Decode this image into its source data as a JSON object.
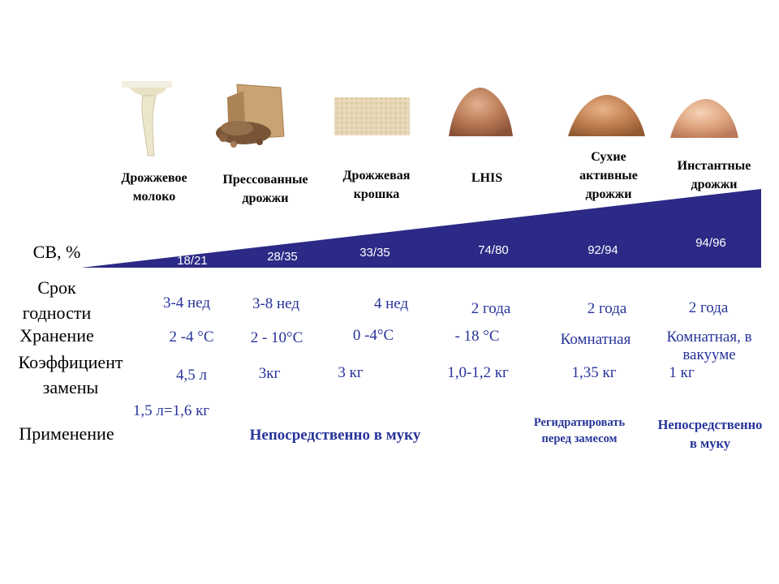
{
  "products": [
    {
      "id": "milk",
      "name": "Дрожжевое\nмолоко"
    },
    {
      "id": "pressed",
      "name": "Прессованные\nдрожжи"
    },
    {
      "id": "crumb",
      "name": "Дрожжевая\nкрошка"
    },
    {
      "id": "lhis",
      "name": "LHIS"
    },
    {
      "id": "dry",
      "name": "Сухие\nактивные\nдрожжи"
    },
    {
      "id": "instant",
      "name": "Инстантные\nдрожжи"
    }
  ],
  "rows": {
    "sv_label": "СВ, %",
    "shelf_label": "Срок\nгодности",
    "storage_label": "Хранение",
    "coef_label": "Коэффициент\nзамены",
    "usage_label": "Применение"
  },
  "sv_values": [
    "18/21",
    "28/35",
    "33/35",
    "74/80",
    "92/94",
    "94/96"
  ],
  "shelf_life": [
    "3-4 нед",
    "3-8 нед",
    "4 нед",
    "2 года",
    "2 года",
    "2 года"
  ],
  "storage": [
    "2 -4 °С",
    "2 - 10°С",
    "0 -4°С",
    "- 18 °С",
    "Комнатная",
    "Комнатная, в\nвакууме"
  ],
  "coefficient": [
    "4,5 л",
    "3кг",
    "3 кг",
    "1,0-1,2 кг",
    "1,35 кг",
    "1 кг"
  ],
  "coefficient_extra": "1,5 л=1,6 кг",
  "usage": {
    "direct": "Непосредственно в муку",
    "rehydrate": "Регидратировать\nперед замесом",
    "direct_instant": "Непосредственно\nв муку"
  },
  "colors": {
    "wedge": "#2b2a86",
    "value_text": "#27349a"
  }
}
